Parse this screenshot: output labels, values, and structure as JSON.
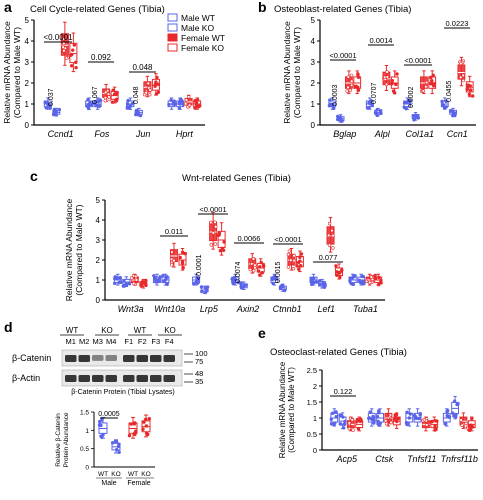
{
  "colors": {
    "male": "#5a64e8",
    "female": "#e8282a",
    "axis": "#000000",
    "band_dark": "#222222",
    "band_light": "#777777"
  },
  "legend": {
    "entries": [
      "Male WT",
      "Male KO",
      "Female WT",
      "Female KO"
    ]
  },
  "chart_data": [
    {
      "panel": "a",
      "type": "box",
      "title": "Cell Cycle-related Genes (Tibia)",
      "ylabel": "Relative mRNA Abundance (Compared to Male WT)",
      "ylim": [
        0,
        5
      ],
      "yticks": [
        0,
        1,
        2,
        3,
        4,
        5
      ],
      "categories": [
        "Ccnd1",
        "Fos",
        "Jun",
        "Hprt"
      ],
      "series": [
        {
          "name": "Male WT",
          "medians": [
            1.0,
            1.0,
            1.0,
            1.0
          ]
        },
        {
          "name": "Male KO",
          "medians": [
            0.6,
            1.0,
            0.6,
            1.0
          ]
        },
        {
          "name": "Female WT",
          "medians": [
            3.8,
            1.5,
            1.8,
            1.1
          ]
        },
        {
          "name": "Female KO",
          "medians": [
            3.4,
            1.4,
            1.9,
            1.0
          ]
        }
      ],
      "annotations": [
        "<0.0001",
        "0.037",
        "0.092",
        "0.067",
        "0.048",
        "0.048"
      ]
    },
    {
      "panel": "b",
      "type": "box",
      "title": "Osteoblast-related Genes (Tibia)",
      "ylabel": "Relative mRNA Abundance (Compared to Male WT)",
      "ylim": [
        0,
        5
      ],
      "yticks": [
        0,
        1,
        2,
        3,
        4,
        5
      ],
      "categories": [
        "Bglap",
        "Alpl",
        "Col1a1",
        "Ccn1"
      ],
      "series": [
        {
          "name": "Male WT",
          "medians": [
            1.0,
            1.0,
            1.0,
            1.0
          ]
        },
        {
          "name": "Male KO",
          "medians": [
            0.3,
            0.6,
            0.4,
            0.6
          ]
        },
        {
          "name": "Female WT",
          "medians": [
            2.0,
            2.2,
            2.0,
            2.5
          ]
        },
        {
          "name": "Female KO",
          "medians": [
            2.0,
            2.0,
            2.0,
            1.8
          ]
        }
      ],
      "annotations": [
        "<0.0001",
        "0.0003",
        "0.0014",
        "0.0707",
        "<0.0001",
        "0.0002",
        "0.0223",
        "0.0455"
      ]
    },
    {
      "panel": "c",
      "type": "box",
      "title": "Wnt-related Genes (Tibia)",
      "ylabel": "Relative mRNA Abundance (Compared to Male WT)",
      "ylim": [
        0,
        5
      ],
      "yticks": [
        0,
        1,
        2,
        3,
        4,
        5
      ],
      "categories": [
        "Wnt3a",
        "Wnt10a",
        "Lrp5",
        "Axin2",
        "Ctnnb1",
        "Lef1",
        "Tuba1"
      ],
      "series": [
        {
          "name": "Male WT",
          "medians": [
            1.0,
            1.0,
            1.0,
            1.0,
            1.0,
            1.0,
            1.0
          ]
        },
        {
          "name": "Male KO",
          "medians": [
            0.9,
            1.0,
            0.5,
            0.7,
            0.6,
            0.8,
            1.0
          ]
        },
        {
          "name": "Female WT",
          "medians": [
            1.0,
            2.2,
            3.4,
            1.8,
            2.0,
            3.2,
            1.0
          ]
        },
        {
          "name": "Female KO",
          "medians": [
            0.8,
            2.0,
            3.0,
            1.6,
            1.9,
            1.4,
            1.0
          ]
        }
      ],
      "annotations": [
        "0.011",
        "<0.0001",
        "<0.0001",
        "0.0066",
        "0.0074",
        "<0.0001",
        "0.0015",
        "0.077"
      ]
    },
    {
      "panel": "d",
      "type": "box",
      "title": "β-Catenin Protein (Tibial Lysates)",
      "ylabel": "Relative β-Catenin Protein Abundance",
      "ylim": [
        0,
        1.5
      ],
      "yticks": [
        0,
        0.5,
        1.0,
        1.5
      ],
      "categories": [
        "WT",
        "KO",
        "WT",
        "KO"
      ],
      "groups": [
        "Male",
        "Female"
      ],
      "values": [
        1.05,
        0.55,
        1.05,
        1.1
      ],
      "annotations": [
        "0.0005"
      ]
    },
    {
      "panel": "e",
      "type": "box",
      "title": "Osteoclast-related Genes (Tibia)",
      "ylabel": "Relative mRNA Abundance (Compared to Male WT)",
      "ylim": [
        0,
        2.5
      ],
      "yticks": [
        0,
        0.5,
        1.0,
        1.5,
        2.0,
        2.5
      ],
      "categories": [
        "Acp5",
        "Ctsk",
        "Tnfsf11",
        "Tnfrsf11b"
      ],
      "series": [
        {
          "name": "Male WT",
          "medians": [
            1.0,
            1.0,
            1.0,
            1.0
          ]
        },
        {
          "name": "Male KO",
          "medians": [
            0.9,
            1.0,
            1.0,
            1.3
          ]
        },
        {
          "name": "Female WT",
          "medians": [
            0.8,
            1.0,
            0.8,
            0.9
          ]
        },
        {
          "name": "Female KO",
          "medians": [
            0.8,
            0.9,
            0.8,
            0.8
          ]
        }
      ],
      "annotations": [
        "0.122"
      ]
    }
  ],
  "blot": {
    "group_labels": [
      "WT",
      "KO",
      "WT",
      "KO"
    ],
    "lane_labels": [
      "M1",
      "M2",
      "M3",
      "M4",
      "F1",
      "F2",
      "F3",
      "F4"
    ],
    "rows": [
      {
        "label": "β-Catenin",
        "markers": [
          "100",
          "75"
        ]
      },
      {
        "label": "β-Actin",
        "markers": [
          "48",
          "35"
        ]
      }
    ],
    "lane_intensity": [
      1,
      1,
      0.45,
      0.5,
      1,
      1,
      1,
      1
    ]
  },
  "panel_letters": [
    "a",
    "b",
    "c",
    "d",
    "e"
  ]
}
